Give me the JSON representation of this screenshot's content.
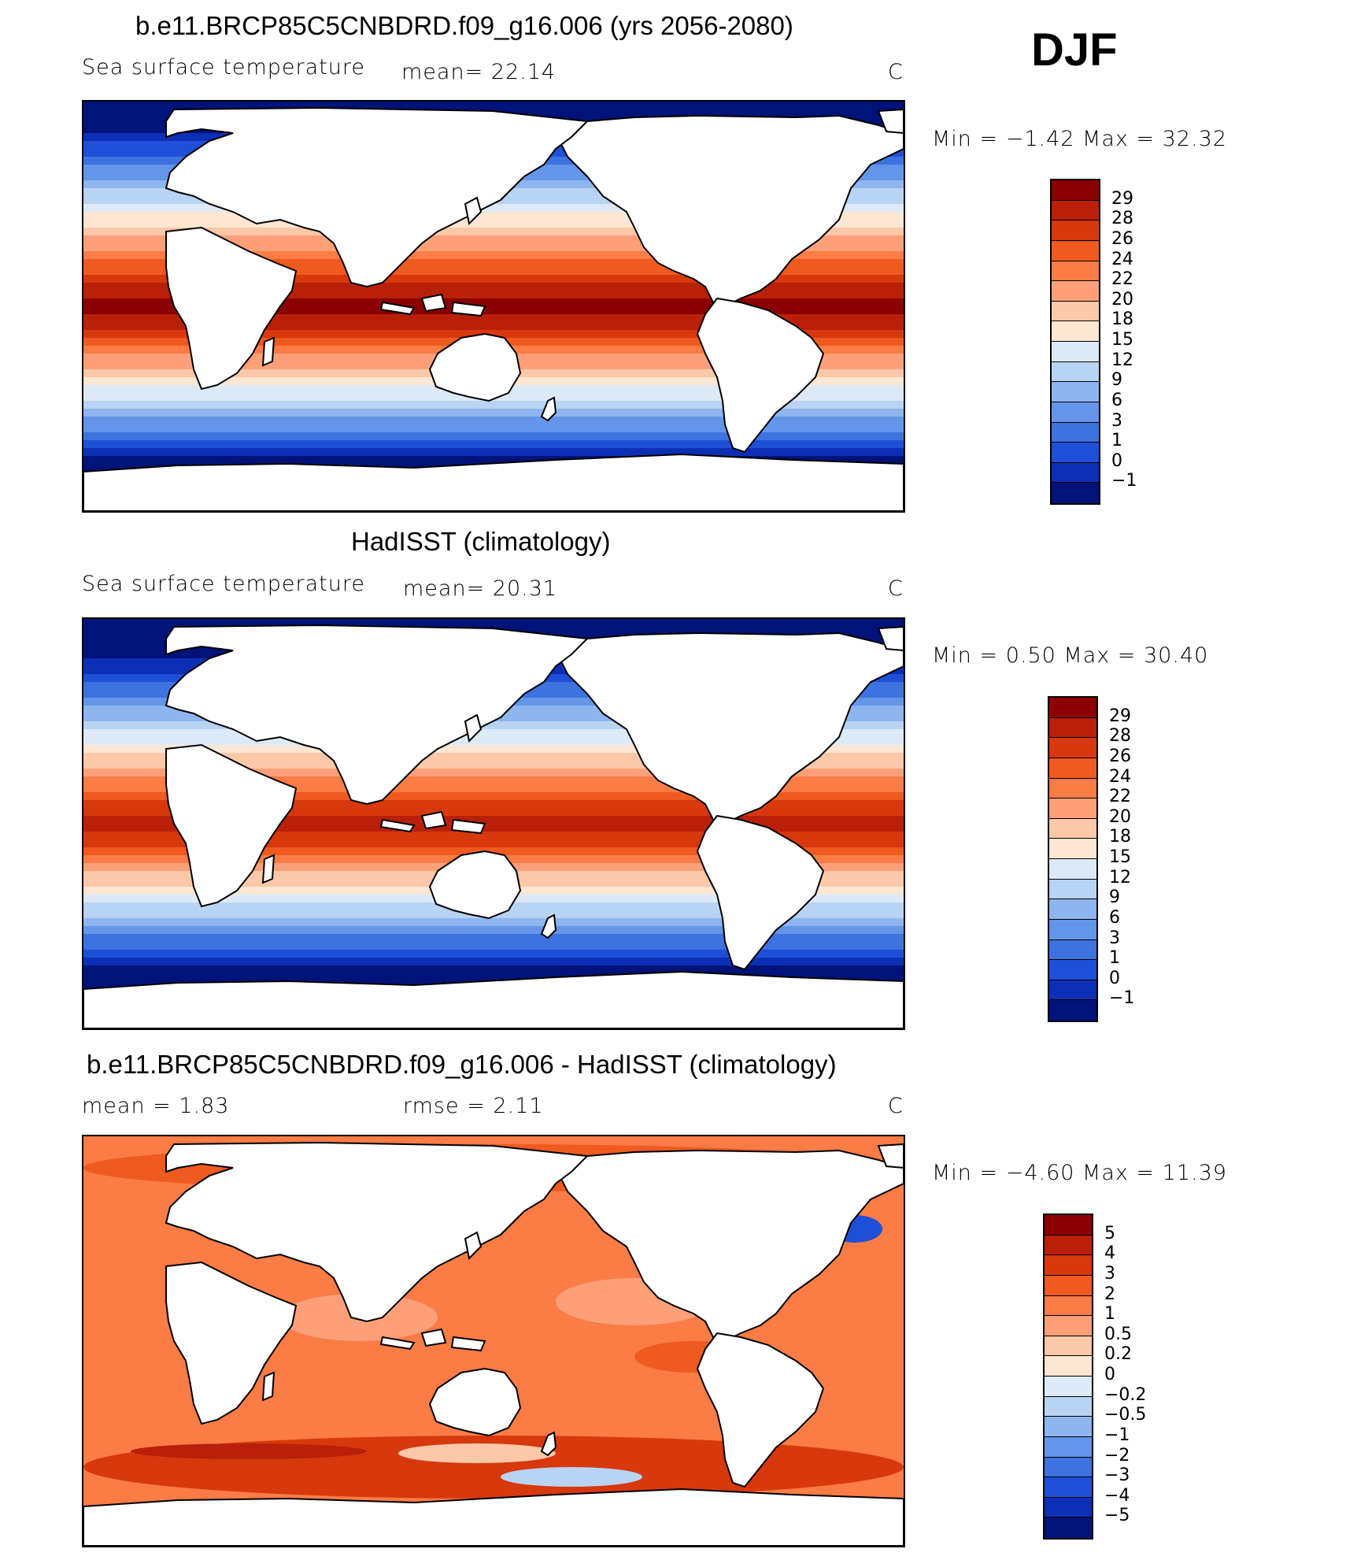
{
  "season": "DJF",
  "panels": [
    {
      "title": "b.e11.BRCP85C5CNBDRD.f09_g16.006 (yrs 2056-2080)",
      "variable": "Sea surface temperature",
      "stat": "mean=   22.14",
      "unit": "C",
      "minmax": "Min =   −1.42  Max =   32.32",
      "levels": [
        "29",
        "28",
        "26",
        "24",
        "22",
        "20",
        "18",
        "15",
        "12",
        "9",
        "6",
        "3",
        "1",
        "0",
        "−1"
      ],
      "colors": [
        "#8b0000",
        "#b8200a",
        "#d8380d",
        "#ef5a1f",
        "#fb7c45",
        "#fda07a",
        "#fcc8a8",
        "#fde6d2",
        "#dceaf8",
        "#b9d3f3",
        "#8fb5ef",
        "#6595e9",
        "#3d72df",
        "#1f4fd7",
        "#0d2fb5",
        "#00137a"
      ]
    },
    {
      "title": "HadISST (climatology)",
      "variable": "Sea surface temperature",
      "stat": "mean=   20.31",
      "unit": "C",
      "minmax": "Min =    0.50  Max =   30.40",
      "levels": [
        "29",
        "28",
        "26",
        "24",
        "22",
        "20",
        "18",
        "15",
        "12",
        "9",
        "6",
        "3",
        "1",
        "0",
        "−1"
      ],
      "colors": [
        "#8b0000",
        "#b8200a",
        "#d8380d",
        "#ef5a1f",
        "#fb7c45",
        "#fda07a",
        "#fcc8a8",
        "#fde6d2",
        "#dceaf8",
        "#b9d3f3",
        "#8fb5ef",
        "#6595e9",
        "#3d72df",
        "#1f4fd7",
        "#0d2fb5",
        "#00137a"
      ]
    },
    {
      "title": "b.e11.BRCP85C5CNBDRD.f09_g16.006 - HadISST (climatology)",
      "variable": "mean =     1.83",
      "stat": "rmse =     2.11",
      "unit": "C",
      "minmax": "Min =   −4.60  Max =   11.39",
      "levels": [
        "5",
        "4",
        "3",
        "2",
        "1",
        "0.5",
        "0.2",
        "0",
        "−0.2",
        "−0.5",
        "−1",
        "−2",
        "−3",
        "−4",
        "−5"
      ],
      "colors": [
        "#8b0000",
        "#b8200a",
        "#d8380d",
        "#ef5a1f",
        "#fb7c45",
        "#fda07a",
        "#fcc8a8",
        "#fde6d2",
        "#dceaf8",
        "#b9d3f3",
        "#8fb5ef",
        "#6595e9",
        "#3d72df",
        "#1f4fd7",
        "#0d2fb5",
        "#00137a"
      ]
    }
  ]
}
